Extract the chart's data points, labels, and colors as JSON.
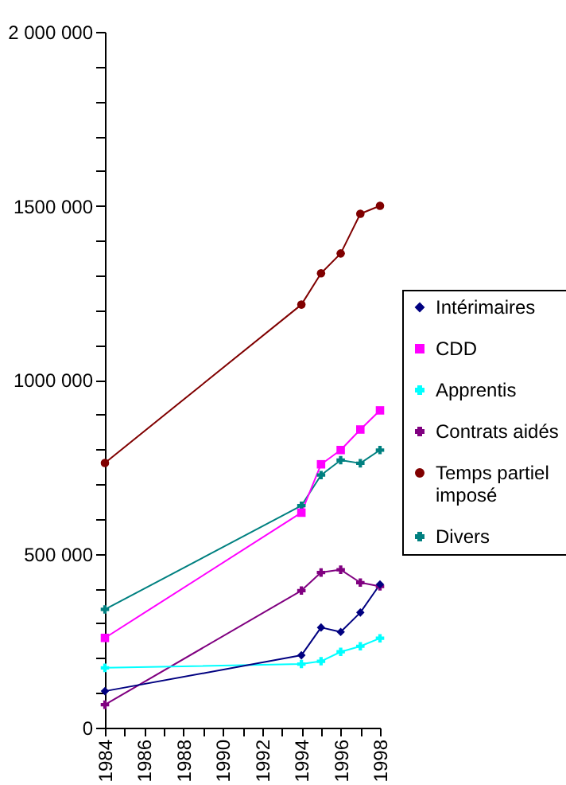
{
  "chart_data": {
    "type": "line",
    "x": [
      1984,
      1994,
      1995,
      1996,
      1997,
      1998
    ],
    "series": [
      {
        "name": "Intérimaires",
        "color": "#000080",
        "marker": "diamond",
        "values": [
          105000,
          208000,
          288000,
          275000,
          331000,
          412000
        ]
      },
      {
        "name": "CDD",
        "color": "#ff00ff",
        "marker": "square",
        "values": [
          258000,
          618000,
          757000,
          798000,
          857000,
          912000
        ]
      },
      {
        "name": "Apprentis",
        "color": "#00ffff",
        "marker": "cross",
        "values": [
          172000,
          183000,
          191000,
          218000,
          234000,
          257000
        ]
      },
      {
        "name": "Contrats aidés",
        "color": "#800080",
        "marker": "cross",
        "values": [
          66000,
          394000,
          446000,
          454000,
          417000,
          406000
        ]
      },
      {
        "name": "Temps partiel imposé",
        "color": "#800000",
        "marker": "circle",
        "values": [
          761000,
          1216000,
          1306000,
          1363000,
          1477000,
          1500000
        ]
      },
      {
        "name": "Divers",
        "color": "#008080",
        "marker": "cross",
        "values": [
          340000,
          638000,
          726000,
          769000,
          760000,
          798000
        ]
      }
    ],
    "xlim": [
      1984,
      1998
    ],
    "xticks": [
      1984,
      {
        "value": 1985,
        "label": null
      },
      1986,
      {
        "value": 1987,
        "label": null
      },
      1988,
      {
        "value": 1989,
        "label": null
      },
      1990,
      {
        "value": 1991,
        "label": null
      },
      1992,
      {
        "value": 1993,
        "label": null
      },
      1994,
      {
        "value": 1995,
        "label": null
      },
      1996,
      {
        "value": 1997,
        "label": null
      },
      1998
    ],
    "ylim": [
      0,
      2000000
    ],
    "yticks": [
      0,
      {
        "value": 100000,
        "label": null
      },
      {
        "value": 200000,
        "label": null
      },
      {
        "value": 300000,
        "label": null
      },
      {
        "value": 400000,
        "label": null
      },
      {
        "value": 500000,
        "label": "500 000"
      },
      {
        "value": 600000,
        "label": null
      },
      {
        "value": 700000,
        "label": null
      },
      {
        "value": 800000,
        "label": null
      },
      {
        "value": 900000,
        "label": null
      },
      {
        "value": 1000000,
        "label": "1000 000"
      },
      {
        "value": 1100000,
        "label": null
      },
      {
        "value": 1200000,
        "label": null
      },
      {
        "value": 1300000,
        "label": null
      },
      {
        "value": 1400000,
        "label": null
      },
      {
        "value": 1500000,
        "label": "1500 000"
      },
      {
        "value": 1600000,
        "label": null
      },
      {
        "value": 1700000,
        "label": null
      },
      {
        "value": 1800000,
        "label": null
      },
      {
        "value": 1900000,
        "label": null
      },
      {
        "value": 2000000,
        "label": "2 000 000"
      }
    ],
    "grid": false,
    "legend": "right"
  }
}
